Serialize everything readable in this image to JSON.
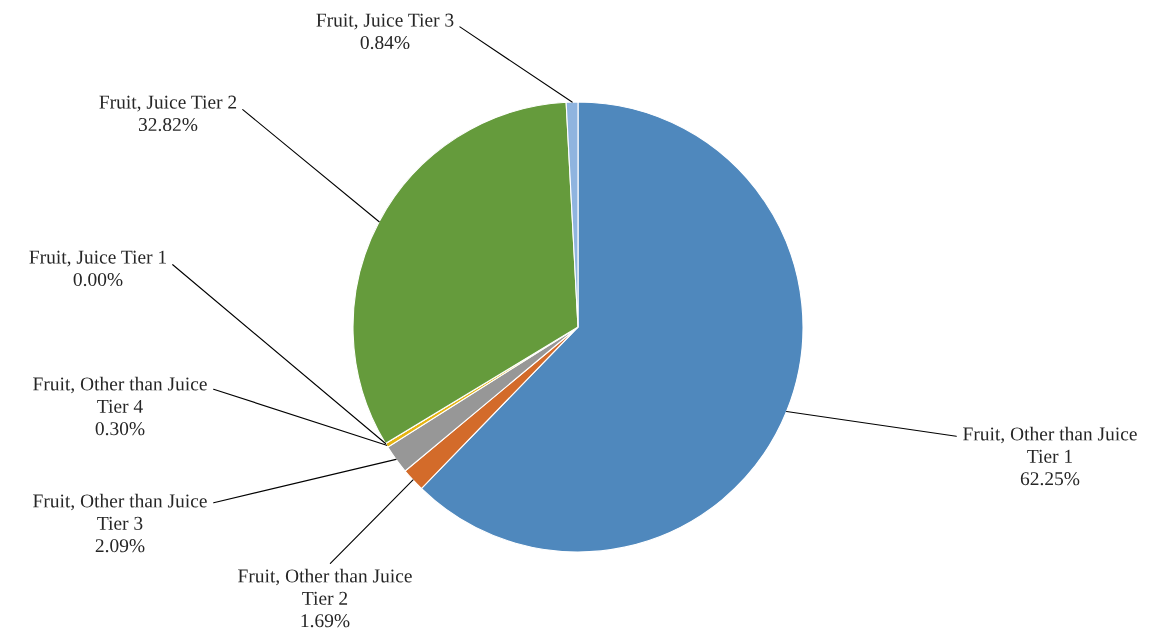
{
  "chart_data": {
    "type": "pie",
    "categories": [
      "Fruit, Other than Juice\nTier 1",
      "Fruit, Other than Juice\nTier 2",
      "Fruit, Other than Juice\nTier 3",
      "Fruit, Other than Juice\nTier 4",
      "Fruit, Juice Tier 1",
      "Fruit, Juice Tier 2",
      "Fruit, Juice Tier 3"
    ],
    "values": [
      62.25,
      1.69,
      2.09,
      0.3,
      0.0,
      32.82,
      0.84
    ],
    "value_labels": [
      "62.25%",
      "1.69%",
      "2.09%",
      "0.30%",
      "0.00%",
      "32.82%",
      "0.84%"
    ],
    "colors": [
      "#4f88bd",
      "#d36b2a",
      "#979797",
      "#e6b410",
      "#3c6db0",
      "#659b3c",
      "#8fb4df"
    ],
    "legend": false
  }
}
